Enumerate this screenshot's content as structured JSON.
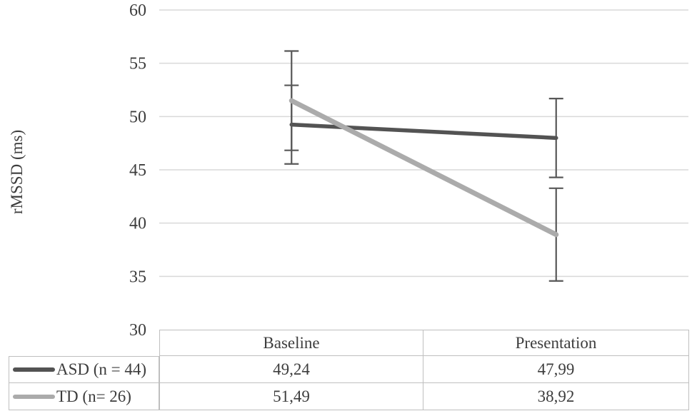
{
  "figure": {
    "background": "#ffffff",
    "text_color": "#3d3d3d"
  },
  "chart_data": {
    "type": "line",
    "title": "",
    "xlabel": "",
    "ylabel": "rMSSD (ms)",
    "categories": [
      "Baseline",
      "Presentation"
    ],
    "series": [
      {
        "name": "ASD (n = 44)",
        "values": [
          49.24,
          47.99
        ],
        "errors": [
          3.69,
          3.7
        ],
        "color": "#535353",
        "line_width": 5.5
      },
      {
        "name": "TD (n= 26)",
        "values": [
          51.49,
          38.92
        ],
        "errors": [
          4.66,
          4.35
        ],
        "color": "#ababab",
        "line_width": 7
      }
    ],
    "ylim": [
      30,
      60
    ],
    "yticks": [
      30,
      35,
      40,
      45,
      50,
      55,
      60
    ],
    "ytick_labels": [
      "30",
      "35",
      "40",
      "45",
      "50",
      "55",
      "60"
    ],
    "grid": true,
    "gridline_color": "#d9d9d9",
    "error_bar_color": "#585858",
    "legend_position": "data-table-left",
    "data_table": {
      "col_headers": [
        "Baseline",
        "Presentation"
      ],
      "rows": [
        {
          "label": "ASD (n = 44)",
          "cells": [
            "49,24",
            "47,99"
          ]
        },
        {
          "label": "TD (n= 26)",
          "cells": [
            "51,49",
            "38,92"
          ]
        }
      ]
    }
  }
}
